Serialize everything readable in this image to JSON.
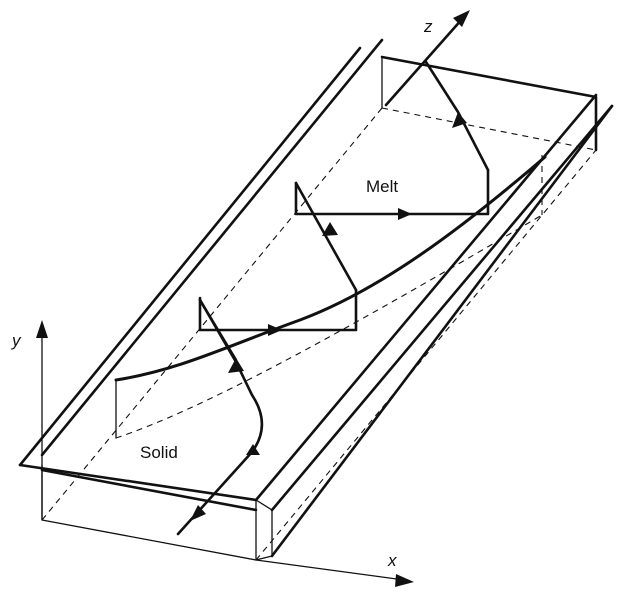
{
  "axes": {
    "x_label": "x",
    "y_label": "y",
    "z_label": "z"
  },
  "regions": {
    "melt_label": "Melt",
    "solid_label": "Solid"
  }
}
